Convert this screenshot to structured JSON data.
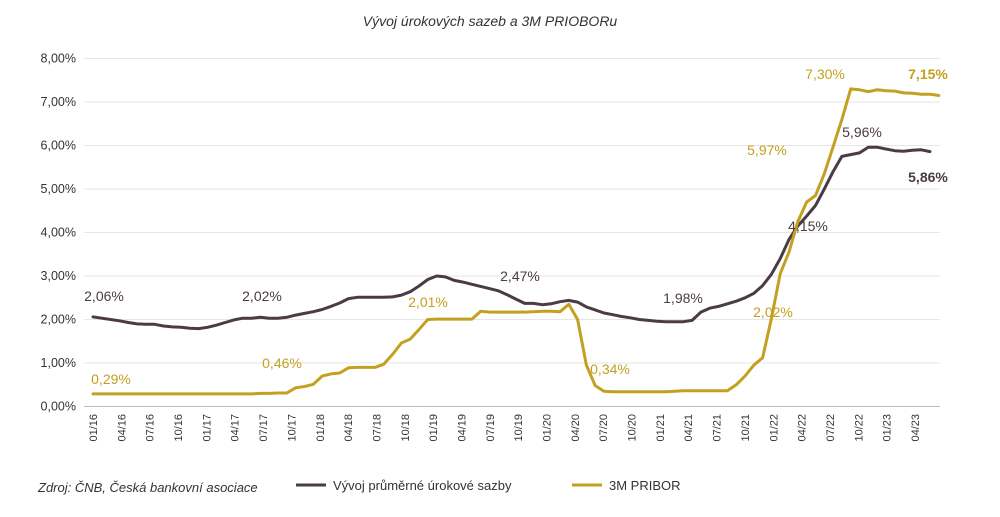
{
  "chart_data": {
    "type": "line",
    "title": "Vývoj úrokových sazeb a 3M PRIOBORu",
    "source": "Zdroj: ČNB, Česká bankovní asociace",
    "xlabel": "",
    "ylabel": "",
    "ylim": [
      0,
      8
    ],
    "yticks": [
      "0,00%",
      "1,00%",
      "2,00%",
      "3,00%",
      "4,00%",
      "5,00%",
      "6,00%",
      "7,00%",
      "8,00%"
    ],
    "grid": true,
    "legend_position": "bottom",
    "x_tick_labels": [
      "01/16",
      "04/16",
      "07/16",
      "10/16",
      "01/17",
      "04/17",
      "07/17",
      "10/17",
      "01/18",
      "04/18",
      "07/18",
      "10/18",
      "01/19",
      "04/19",
      "07/19",
      "10/19",
      "01/20",
      "04/20",
      "07/20",
      "10/20",
      "01/21",
      "04/21",
      "07/21",
      "10/21",
      "01/22",
      "04/22",
      "07/22",
      "10/22",
      "01/23",
      "04/23"
    ],
    "series": [
      {
        "name": "Vývoj průměrné úrokové sazby",
        "color": "#4a3b45",
        "values": [
          2.06,
          2.03,
          2.0,
          1.97,
          1.93,
          1.9,
          1.89,
          1.89,
          1.85,
          1.83,
          1.82,
          1.8,
          1.79,
          1.82,
          1.87,
          1.93,
          1.99,
          2.03,
          2.03,
          2.05,
          2.03,
          2.03,
          2.05,
          2.1,
          2.14,
          2.18,
          2.23,
          2.3,
          2.38,
          2.48,
          2.51,
          2.51,
          2.51,
          2.51,
          2.52,
          2.56,
          2.64,
          2.77,
          2.92,
          3.0,
          2.98,
          2.9,
          2.86,
          2.81,
          2.76,
          2.71,
          2.66,
          2.57,
          2.47,
          2.37,
          2.37,
          2.34,
          2.36,
          2.41,
          2.44,
          2.4,
          2.29,
          2.22,
          2.15,
          2.11,
          2.07,
          2.04,
          2.0,
          1.98,
          1.96,
          1.95,
          1.95,
          1.95,
          1.98,
          2.17,
          2.26,
          2.3,
          2.36,
          2.42,
          2.5,
          2.6,
          2.78,
          3.04,
          3.4,
          3.84,
          4.15,
          4.38,
          4.62,
          5.0,
          5.4,
          5.75,
          5.79,
          5.83,
          5.96,
          5.96,
          5.92,
          5.88,
          5.87,
          5.89,
          5.9,
          5.86
        ]
      },
      {
        "name": "3M PRIBOR",
        "color": "#c4a020",
        "values": [
          0.29,
          0.29,
          0.29,
          0.29,
          0.29,
          0.29,
          0.29,
          0.29,
          0.29,
          0.29,
          0.29,
          0.29,
          0.29,
          0.29,
          0.29,
          0.29,
          0.29,
          0.29,
          0.29,
          0.3,
          0.3,
          0.31,
          0.31,
          0.43,
          0.46,
          0.51,
          0.7,
          0.75,
          0.77,
          0.89,
          0.9,
          0.9,
          0.9,
          0.97,
          1.2,
          1.46,
          1.55,
          1.77,
          2.0,
          2.01,
          2.01,
          2.01,
          2.01,
          2.01,
          2.19,
          2.17,
          2.17,
          2.17,
          2.17,
          2.17,
          2.18,
          2.19,
          2.19,
          2.18,
          2.35,
          2.0,
          0.95,
          0.48,
          0.35,
          0.34,
          0.34,
          0.34,
          0.34,
          0.34,
          0.34,
          0.34,
          0.35,
          0.36,
          0.36,
          0.36,
          0.36,
          0.36,
          0.36,
          0.5,
          0.7,
          0.95,
          1.12,
          2.02,
          3.05,
          3.55,
          4.25,
          4.7,
          4.85,
          5.35,
          5.97,
          6.6,
          7.3,
          7.28,
          7.24,
          7.28,
          7.26,
          7.25,
          7.21,
          7.2,
          7.18,
          7.18,
          7.15
        ]
      }
    ],
    "annotations": {
      "rate": [
        "2,06%",
        "2,02%",
        "2,47%",
        "1,98%",
        "4,15%",
        "5,96%",
        "5,86%"
      ],
      "pribor": [
        "0,29%",
        "0,46%",
        "2,01%",
        "0,34%",
        "2,02%",
        "5,97%",
        "7,30%",
        "7,15%"
      ]
    }
  }
}
